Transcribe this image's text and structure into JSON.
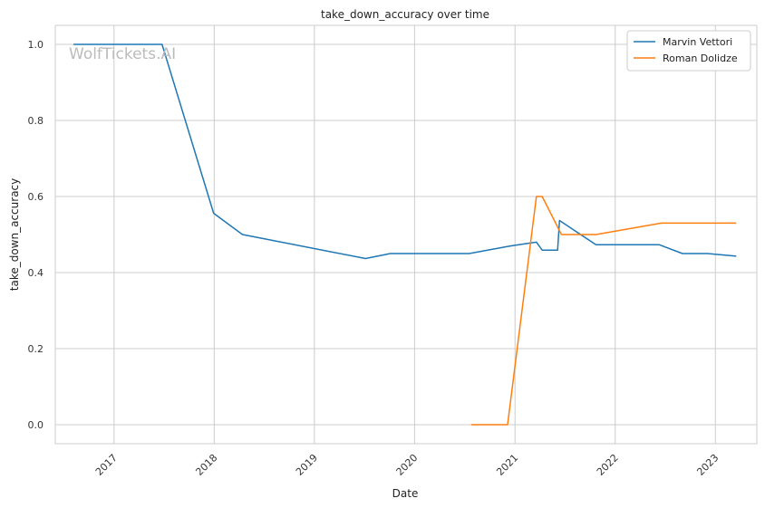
{
  "watermark": "WolfTickets.AI",
  "chart_data": {
    "type": "line",
    "title": "take_down_accuracy over time",
    "xlabel": "Date",
    "ylabel": "take_down_accuracy",
    "x_axis_type": "date",
    "xlim": [
      "2016-06-01",
      "2023-06-01"
    ],
    "ylim": [
      -0.05,
      1.05
    ],
    "x_ticks": [
      "2017-01-01",
      "2018-01-01",
      "2019-01-01",
      "2020-01-01",
      "2021-01-01",
      "2022-01-01",
      "2023-01-01"
    ],
    "x_tick_labels": [
      "2017",
      "2018",
      "2019",
      "2020",
      "2021",
      "2022",
      "2023"
    ],
    "y_ticks": [
      0.0,
      0.2,
      0.4,
      0.6,
      0.8,
      1.0
    ],
    "y_tick_labels": [
      "0.0",
      "0.2",
      "0.4",
      "0.6",
      "0.8",
      "1.0"
    ],
    "grid": true,
    "legend_position": "top-right",
    "series": [
      {
        "name": "Marvin Vettori",
        "color": "#1f77b4",
        "points": [
          [
            "2016-08-06",
            1.0
          ],
          [
            "2017-06-25",
            1.0
          ],
          [
            "2017-12-30",
            0.556
          ],
          [
            "2018-04-14",
            0.5
          ],
          [
            "2019-07-06",
            0.437
          ],
          [
            "2019-10-05",
            0.45
          ],
          [
            "2020-07-18",
            0.45
          ],
          [
            "2020-12-15",
            0.47
          ],
          [
            "2021-03-20",
            0.48
          ],
          [
            "2021-04-10",
            0.459
          ],
          [
            "2021-06-05",
            0.459
          ],
          [
            "2021-06-12",
            0.537
          ],
          [
            "2021-10-23",
            0.473
          ],
          [
            "2022-06-11",
            0.473
          ],
          [
            "2022-09-03",
            0.45
          ],
          [
            "2022-12-03",
            0.45
          ],
          [
            "2023-03-18",
            0.443
          ]
        ]
      },
      {
        "name": "Roman Dolidze",
        "color": "#ff7f0e",
        "points": [
          [
            "2020-07-25",
            0.0
          ],
          [
            "2020-12-05",
            0.0
          ],
          [
            "2021-03-20",
            0.6
          ],
          [
            "2021-04-10",
            0.6
          ],
          [
            "2021-06-19",
            0.5
          ],
          [
            "2021-10-23",
            0.5
          ],
          [
            "2022-06-18",
            0.53
          ],
          [
            "2023-03-18",
            0.53
          ]
        ]
      }
    ]
  }
}
